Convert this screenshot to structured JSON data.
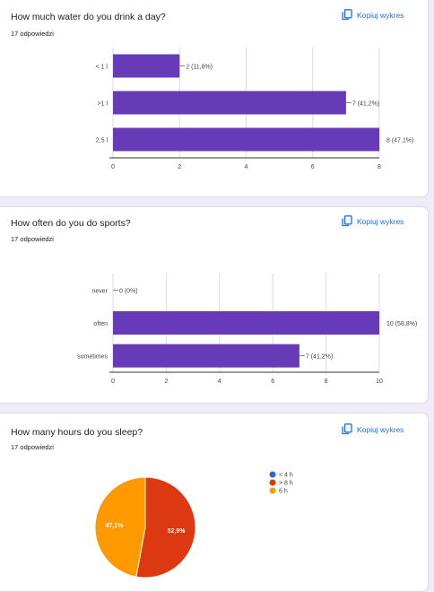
{
  "copy_label": "Kopiuj wykres",
  "colors": {
    "bar": "#673ab7",
    "grid": "#dadce0",
    "accent": "#1a73e8",
    "pie_blue": "#3366cc",
    "pie_red": "#dc3912",
    "pie_orange": "#ff9900"
  },
  "questions": [
    {
      "title": "How much water do you drink a day?",
      "responses": "17 odpowiedzi",
      "chart_data": {
        "type": "bar",
        "orientation": "horizontal",
        "categories": [
          "< 1 l",
          ">1 l",
          "2,5 l"
        ],
        "values": [
          2,
          7,
          8
        ],
        "data_labels": [
          "2 (11,8%)",
          "7 (41,2%)",
          "8 (47,1%)"
        ],
        "xlim": [
          0,
          8
        ],
        "xticks": [
          "0",
          "2",
          "4",
          "6",
          "8"
        ],
        "grid": true
      }
    },
    {
      "title": "How often do you do sports?",
      "responses": "17 odpowiedzi",
      "chart_data": {
        "type": "bar",
        "orientation": "horizontal",
        "categories": [
          "never",
          "often",
          "sometimes"
        ],
        "values": [
          0,
          10,
          7
        ],
        "data_labels": [
          "0 (0%)",
          "10 (58,8%)",
          "7 (41,2%)"
        ],
        "xlim": [
          0,
          10
        ],
        "xticks": [
          "0",
          "2",
          "4",
          "6",
          "8",
          "10"
        ],
        "grid": true
      }
    },
    {
      "title": "How many hours do you sleep?",
      "responses": "17 odpowiedzi",
      "chart_data": {
        "type": "pie",
        "categories": [
          "< 4 h",
          "> 8 h",
          "6 h"
        ],
        "values": [
          0,
          52.9,
          47.1
        ],
        "slice_labels": [
          "",
          "52,9%",
          "47,1%"
        ],
        "colors": [
          "#3366cc",
          "#dc3912",
          "#ff9900"
        ],
        "legend_position": "right"
      }
    }
  ]
}
